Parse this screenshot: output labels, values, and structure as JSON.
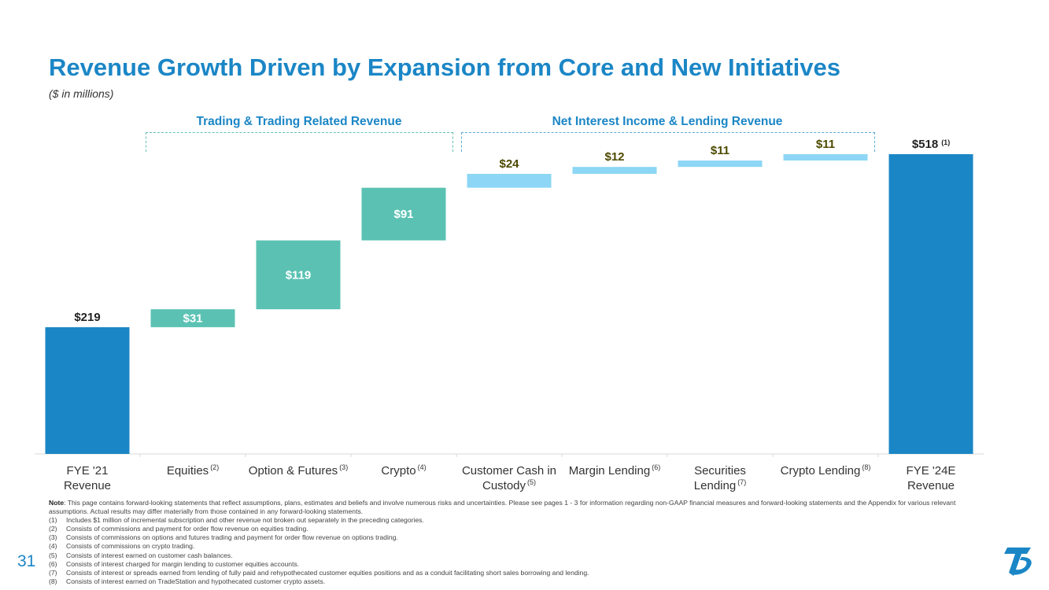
{
  "title": "Revenue Growth Driven by Expansion from Core and New Initiatives",
  "subtitle": "($ in millions)",
  "groups": {
    "trading": "Trading & Trading Related Revenue",
    "interest": "Net Interest Income & Lending Revenue"
  },
  "colors": {
    "title": "#1b86c6",
    "total": "#1b86c6",
    "trading": "#5bc2b3",
    "interest": "#8dd6f5"
  },
  "chart_data": {
    "type": "bar",
    "subtype": "waterfall",
    "title": "Revenue Growth Driven by Expansion from Core and New Initiatives",
    "unit": "$ in millions",
    "categories": [
      "FYE '21 Revenue",
      "Equities",
      "Option & Futures",
      "Crypto",
      "Customer Cash in Custody",
      "Margin Lending",
      "Securities Lending",
      "Crypto Lending",
      "FYE '24E Revenue"
    ],
    "footnote_refs": [
      "",
      "(2)",
      "(3)",
      "(4)",
      "(5)",
      "(6)",
      "(7)",
      "(8)",
      ""
    ],
    "values": [
      219,
      31,
      119,
      91,
      24,
      12,
      11,
      11,
      518
    ],
    "labels": [
      "$219",
      "$31",
      "$119",
      "$91",
      "$24",
      "$12",
      "$11",
      "$11",
      "$518"
    ],
    "label_ref": [
      "",
      "",
      "",
      "",
      "",
      "",
      "",
      "",
      "(1)"
    ],
    "bar_kind": [
      "total",
      "trading",
      "trading",
      "trading",
      "interest",
      "interest",
      "interest",
      "interest",
      "total"
    ],
    "ylim": [
      0,
      518
    ],
    "xlabel": "",
    "ylabel": ""
  },
  "notes": {
    "label": "Note",
    "text": ": This page contains forward-looking statements that reflect assumptions, plans, estimates and beliefs and involve numerous risks and uncertainties. Please see pages 1 - 3 for information regarding non-GAAP financial measures and forward-looking statements and the Appendix for various relevant assumptions. Actual results may differ materially from those contained in any forward-looking statements.",
    "footnotes": [
      {
        "n": "(1)",
        "text": "Includes $1 million of incremental subscription and other revenue not broken out separately in the preceding categories."
      },
      {
        "n": "(2)",
        "text": "Consists of commissions and payment for order flow revenue on equities trading."
      },
      {
        "n": "(3)",
        "text": "Consists of commissions on options and futures trading and payment for order flow revenue on options trading."
      },
      {
        "n": "(4)",
        "text": "Consists of commissions on crypto trading."
      },
      {
        "n": "(5)",
        "text": "Consists of interest earned on customer cash balances."
      },
      {
        "n": "(6)",
        "text": "Consists of interest charged for margin lending to customer equities accounts."
      },
      {
        "n": "(7)",
        "text": "Consists of interest or spreads earned from lending of fully paid and rehypothecated customer equities positions and as a conduit facilitating short sales borrowing and lending."
      },
      {
        "n": "(8)",
        "text": "Consists of interest earned on TradeStation and hypothecated customer crypto assets."
      }
    ]
  },
  "page_number": "31",
  "logo_icon": "tradestation-logo-icon"
}
